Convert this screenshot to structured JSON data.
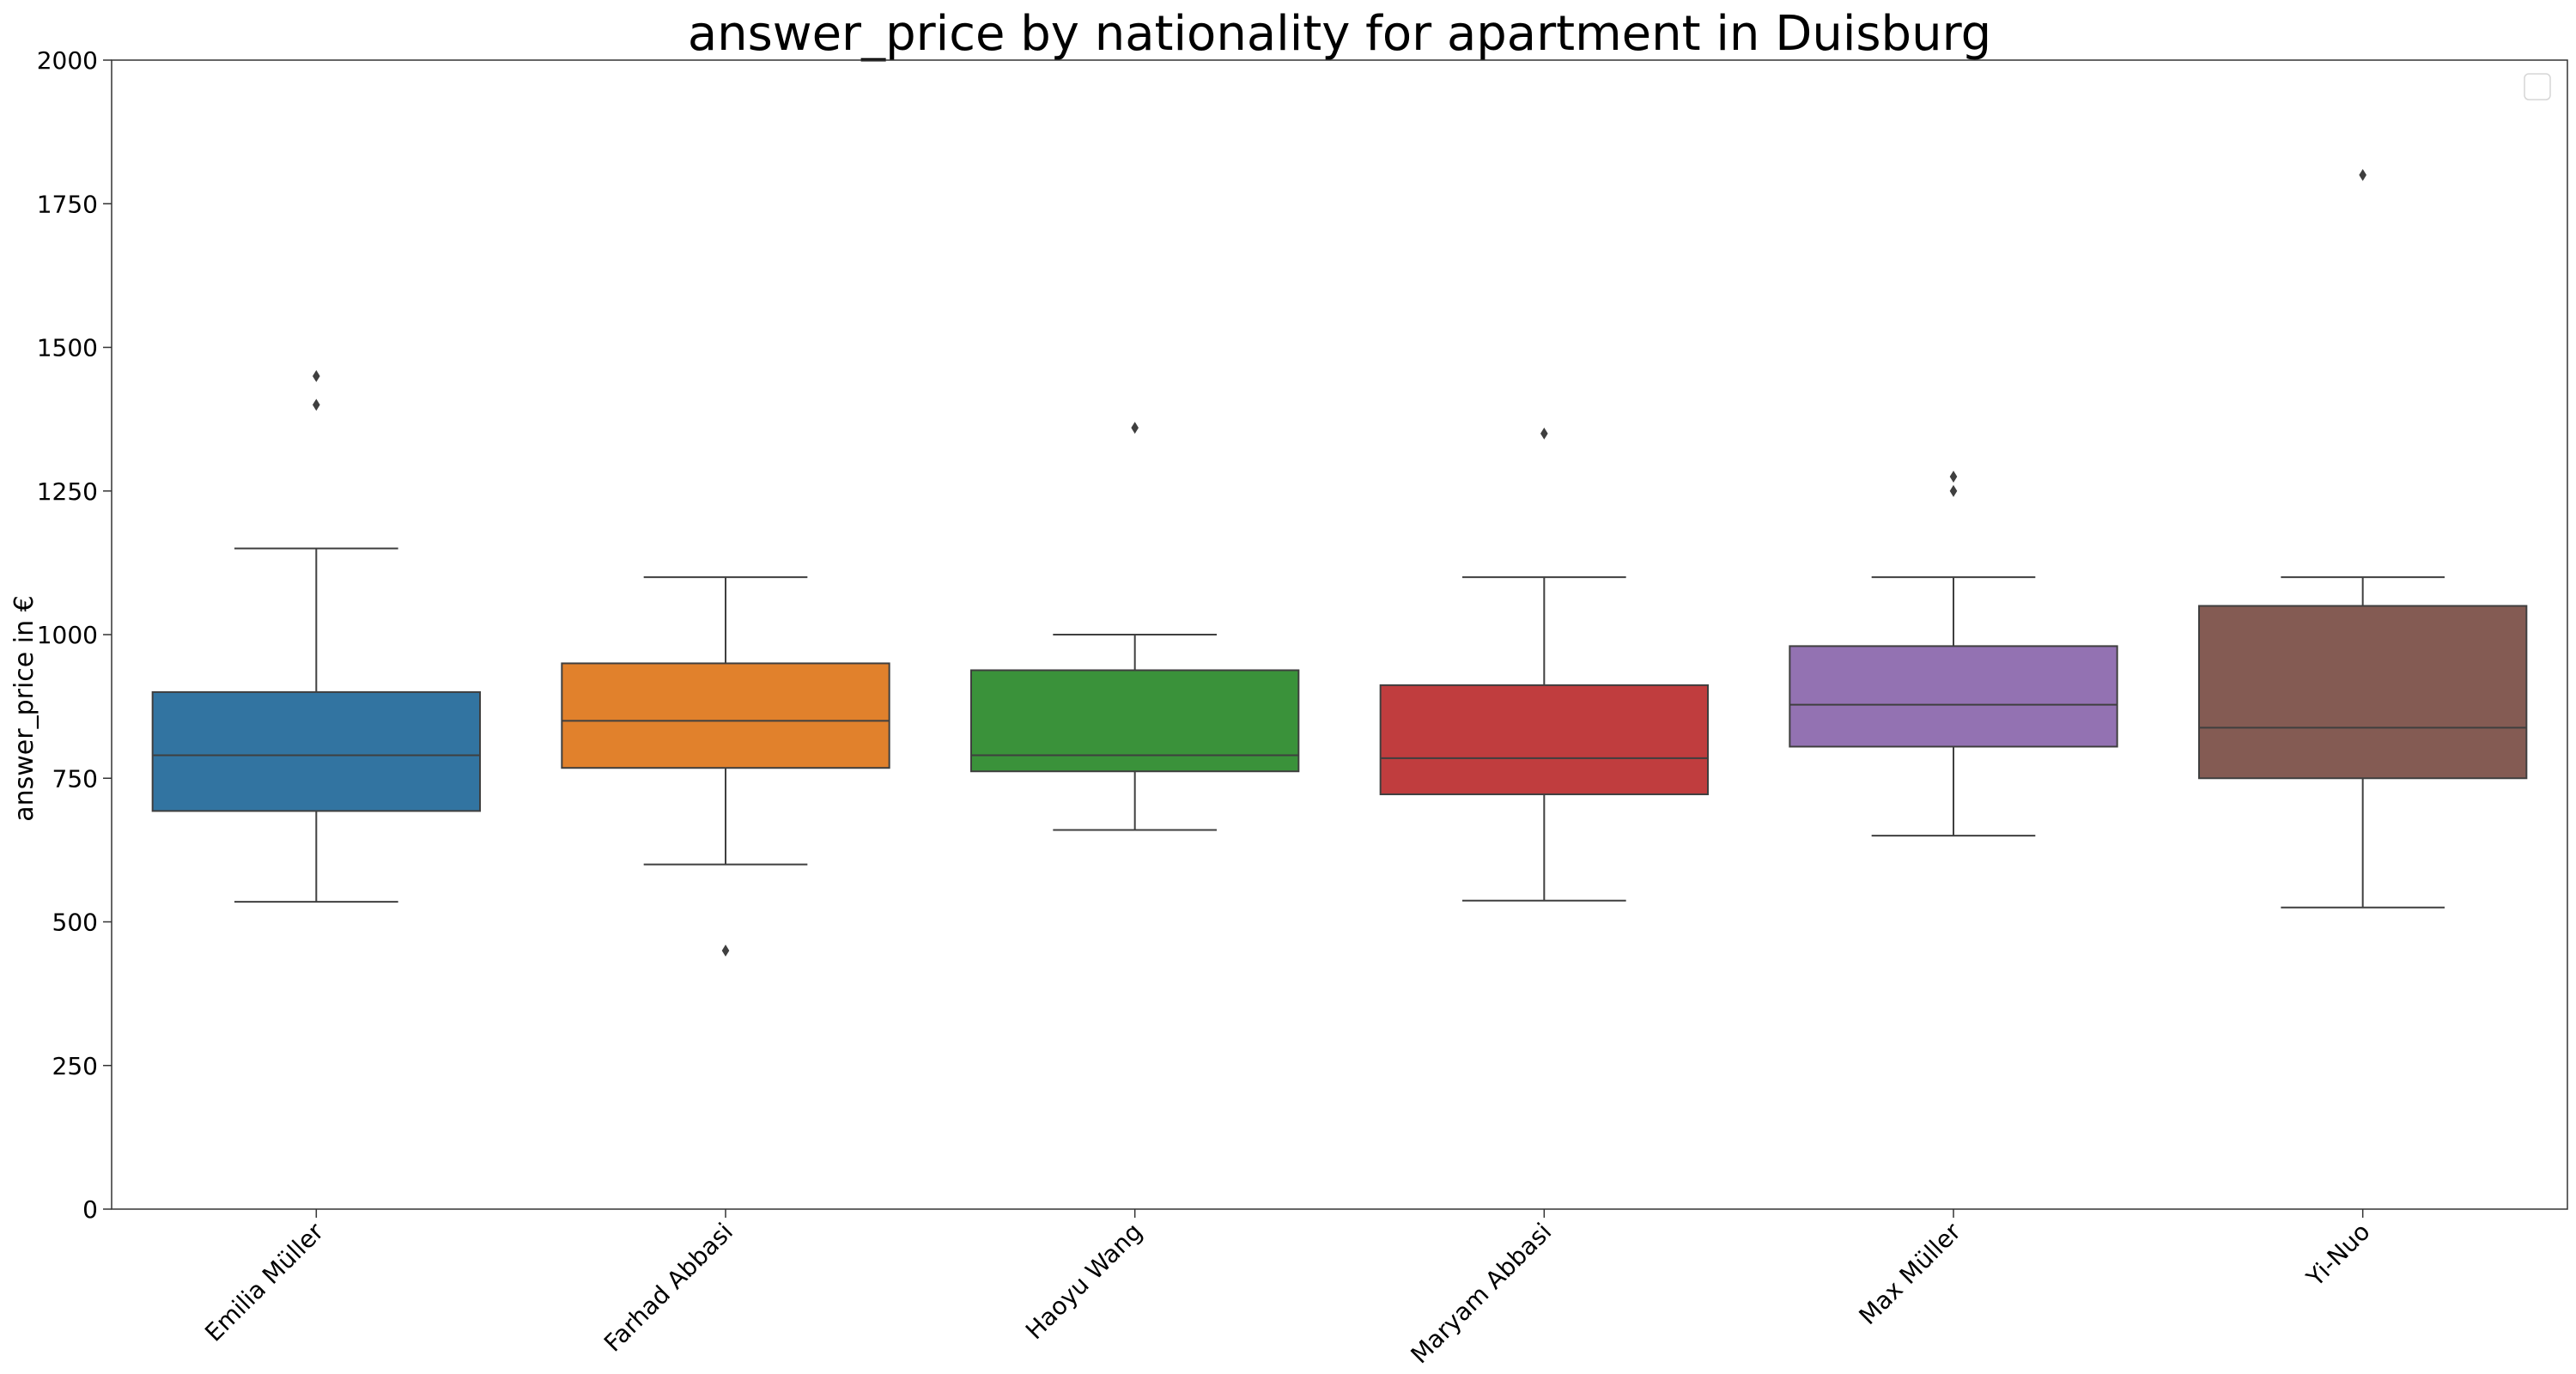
{
  "chart_data": {
    "type": "box",
    "title": "answer_price by nationality for apartment in Duisburg",
    "xlabel": "",
    "ylabel": "answer_price in €",
    "ylim": [
      0,
      2000
    ],
    "yticks": [
      0,
      250,
      500,
      750,
      1000,
      1250,
      1500,
      1750,
      2000
    ],
    "grid": false,
    "legend": "top-right (empty)",
    "categories": [
      "Emilia Müller",
      "Farhad Abbasi",
      "Haoyu Wang",
      "Maryam Abbasi",
      "Max Müller",
      "Yi-Nuo"
    ],
    "boxes": [
      {
        "name": "Emilia Müller",
        "color": "#3274a1",
        "whisker_low": 535,
        "q1": 693,
        "median": 790,
        "q3": 900,
        "whisker_high": 1150,
        "outliers": [
          1400,
          1450
        ]
      },
      {
        "name": "Farhad Abbasi",
        "color": "#e1812c",
        "whisker_low": 600,
        "q1": 768,
        "median": 850,
        "q3": 950,
        "whisker_high": 1100,
        "outliers": [
          450
        ]
      },
      {
        "name": "Haoyu Wang",
        "color": "#3a923a",
        "whisker_low": 660,
        "q1": 762,
        "median": 790,
        "q3": 938,
        "whisker_high": 1000,
        "outliers": [
          1360
        ]
      },
      {
        "name": "Maryam Abbasi",
        "color": "#c03d3e",
        "whisker_low": 537,
        "q1": 722,
        "median": 785,
        "q3": 912,
        "whisker_high": 1100,
        "outliers": [
          1350
        ]
      },
      {
        "name": "Max Müller",
        "color": "#9372b2",
        "whisker_low": 650,
        "q1": 805,
        "median": 878,
        "q3": 980,
        "whisker_high": 1100,
        "outliers": [
          1250,
          1275
        ]
      },
      {
        "name": "Yi-Nuo",
        "color": "#845b53",
        "whisker_low": 525,
        "q1": 750,
        "median": 838,
        "q3": 1050,
        "whisker_high": 1100,
        "outliers": [
          1800
        ]
      }
    ]
  }
}
